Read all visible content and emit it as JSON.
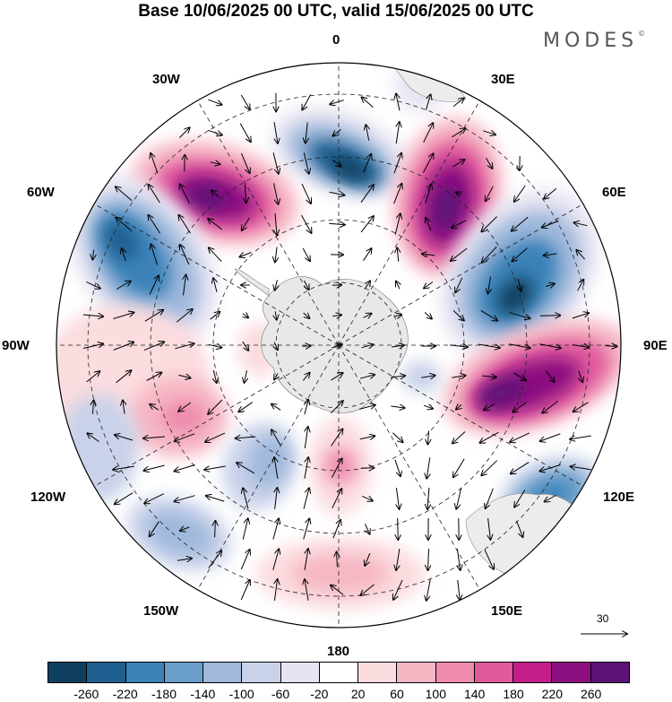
{
  "header": {
    "title": "Base 10/06/2025 00 UTC, valid 15/06/2025 00 UTC",
    "brand": "MODES",
    "brand_mark": "©"
  },
  "map": {
    "projection": "south-polar-stereographic",
    "longitude_labels": [
      "0",
      "30E",
      "60E",
      "90E",
      "120E",
      "150E",
      "180",
      "150W",
      "120W",
      "90W",
      "60W",
      "30W"
    ],
    "reference_vector_label": "30",
    "land_color": "#e8e8e8"
  },
  "colorbar": {
    "colors": [
      "#0f3f5f",
      "#1f5f8f",
      "#3b82b8",
      "#6a9fcb",
      "#9fb8db",
      "#c9d2ea",
      "#e6e4f2",
      "#ffffff",
      "#fbdcdf",
      "#f6b7c4",
      "#ef8cae",
      "#e05a9c",
      "#c21f8b",
      "#8c1080",
      "#5c1277"
    ],
    "tick_labels": [
      "-260",
      "-220",
      "-180",
      "-140",
      "-100",
      "-60",
      "-20",
      "20",
      "60",
      "100",
      "140",
      "180",
      "220",
      "260"
    ]
  }
}
